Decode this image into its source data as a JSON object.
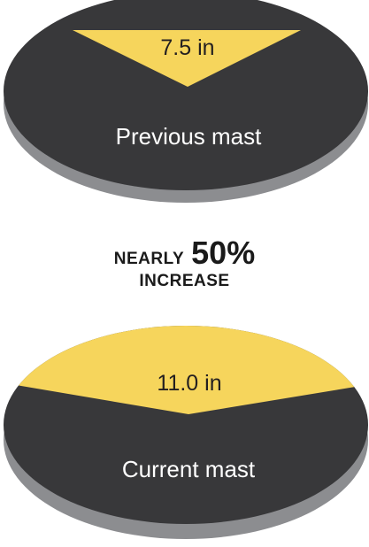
{
  "colors": {
    "disc": "#38383a",
    "rim": "#8c8d90",
    "wedge": "#f6d55c",
    "label": "#ffffff",
    "value": "#231f20"
  },
  "discs": [
    {
      "value_text": "7.5 in",
      "caption": "Previous mast"
    },
    {
      "value_text": "11.0 in",
      "caption": "Current mast"
    }
  ],
  "headline": {
    "prefix": "NEARLY",
    "percent": "50%",
    "suffix": "INCREASE"
  }
}
